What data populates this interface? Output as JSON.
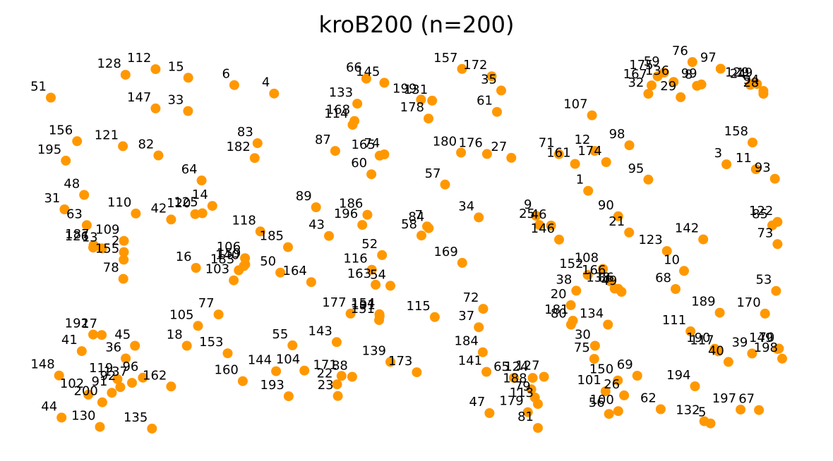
{
  "title": "kroB200  (n=200)",
  "chart_data": {
    "type": "scatter",
    "title": "kroB200  (n=200)",
    "xlabel": "",
    "ylabel": "",
    "axes_visible": false,
    "grid": false,
    "marker_color": "#FF9800",
    "xlim": [
      0,
      4000
    ],
    "ylim": [
      0,
      2000
    ],
    "points": [
      {
        "id": "1",
        "x": 2857,
        "y": 1202
      },
      {
        "id": "2",
        "x": 557,
        "y": 918
      },
      {
        "id": "3",
        "x": 3542,
        "y": 1325
      },
      {
        "id": "4",
        "x": 1301,
        "y": 1653
      },
      {
        "id": "5",
        "x": 3463,
        "y": 124
      },
      {
        "id": "6",
        "x": 1104,
        "y": 1692
      },
      {
        "id": "7",
        "x": 2059,
        "y": 1037
      },
      {
        "id": "8",
        "x": 3396,
        "y": 1689
      },
      {
        "id": "9",
        "x": 2599,
        "y": 1086
      },
      {
        "id": "10",
        "x": 3332,
        "y": 831
      },
      {
        "id": "11",
        "x": 3688,
        "y": 1302
      },
      {
        "id": "12",
        "x": 2889,
        "y": 1387
      },
      {
        "id": "13",
        "x": 449,
        "y": 935
      },
      {
        "id": "14",
        "x": 995,
        "y": 1132
      },
      {
        "id": "15",
        "x": 876,
        "y": 1726
      },
      {
        "id": "16",
        "x": 914,
        "y": 845
      },
      {
        "id": "17",
        "x": 447,
        "y": 534
      },
      {
        "id": "18",
        "x": 869,
        "y": 484
      },
      {
        "id": "19",
        "x": 3693,
        "y": 1697
      },
      {
        "id": "20",
        "x": 2771,
        "y": 672
      },
      {
        "id": "21",
        "x": 3060,
        "y": 1009
      },
      {
        "id": "22",
        "x": 1613,
        "y": 305
      },
      {
        "id": "23",
        "x": 1617,
        "y": 251
      },
      {
        "id": "24",
        "x": 3660,
        "y": 1693
      },
      {
        "id": "25",
        "x": 2615,
        "y": 1044
      },
      {
        "id": "26",
        "x": 3035,
        "y": 254
      },
      {
        "id": "27",
        "x": 2476,
        "y": 1355
      },
      {
        "id": "28",
        "x": 3725,
        "y": 1652
      },
      {
        "id": "29",
        "x": 3315,
        "y": 1636
      },
      {
        "id": "30",
        "x": 2891,
        "y": 484
      },
      {
        "id": "31",
        "x": 263,
        "y": 1116
      },
      {
        "id": "32",
        "x": 3155,
        "y": 1652
      },
      {
        "id": "33",
        "x": 875,
        "y": 1572
      },
      {
        "id": "34",
        "x": 2315,
        "y": 1079
      },
      {
        "id": "35",
        "x": 2426,
        "y": 1667
      },
      {
        "id": "36",
        "x": 566,
        "y": 425
      },
      {
        "id": "37",
        "x": 2315,
        "y": 570
      },
      {
        "id": "38",
        "x": 2798,
        "y": 739
      },
      {
        "id": "39",
        "x": 3669,
        "y": 448
      },
      {
        "id": "40",
        "x": 3552,
        "y": 409
      },
      {
        "id": "41",
        "x": 348,
        "y": 459
      },
      {
        "id": "42",
        "x": 791,
        "y": 1069
      },
      {
        "id": "43",
        "x": 1573,
        "y": 993
      },
      {
        "id": "44",
        "x": 248,
        "y": 151
      },
      {
        "id": "45",
        "x": 612,
        "y": 484
      },
      {
        "id": "46",
        "x": 2673,
        "y": 1041
      },
      {
        "id": "47",
        "x": 2368,
        "y": 172
      },
      {
        "id": "48",
        "x": 360,
        "y": 1183
      },
      {
        "id": "49",
        "x": 3022,
        "y": 734
      },
      {
        "id": "50",
        "x": 1332,
        "y": 823
      },
      {
        "id": "51",
        "x": 195,
        "y": 1634
      },
      {
        "id": "52",
        "x": 1836,
        "y": 904
      },
      {
        "id": "53",
        "x": 3788,
        "y": 738
      },
      {
        "id": "54",
        "x": 1877,
        "y": 762
      },
      {
        "id": "55",
        "x": 1392,
        "y": 486
      },
      {
        "id": "56",
        "x": 2960,
        "y": 168
      },
      {
        "id": "57",
        "x": 2148,
        "y": 1231
      },
      {
        "id": "58",
        "x": 2031,
        "y": 995
      },
      {
        "id": "59",
        "x": 3233,
        "y": 1750
      },
      {
        "id": "60",
        "x": 1783,
        "y": 1279
      },
      {
        "id": "61",
        "x": 2405,
        "y": 1568
      },
      {
        "id": "62",
        "x": 3216,
        "y": 190
      },
      {
        "id": "63",
        "x": 373,
        "y": 1043
      },
      {
        "id": "64",
        "x": 942,
        "y": 1250
      },
      {
        "id": "65",
        "x": 2489,
        "y": 335
      },
      {
        "id": "66",
        "x": 1758,
        "y": 1722
      },
      {
        "id": "67",
        "x": 3703,
        "y": 186
      },
      {
        "id": "68",
        "x": 3290,
        "y": 747
      },
      {
        "id": "69",
        "x": 3100,
        "y": 345
      },
      {
        "id": "70",
        "x": 3802,
        "y": 471
      },
      {
        "id": "71",
        "x": 2712,
        "y": 1372
      },
      {
        "id": "72",
        "x": 2337,
        "y": 655
      },
      {
        "id": "73",
        "x": 3795,
        "y": 955
      },
      {
        "id": "74",
        "x": 1847,
        "y": 1371
      },
      {
        "id": "75",
        "x": 2887,
        "y": 423
      },
      {
        "id": "76",
        "x": 3373,
        "y": 1799
      },
      {
        "id": "77",
        "x": 1026,
        "y": 629
      },
      {
        "id": "78",
        "x": 554,
        "y": 794
      },
      {
        "id": "79",
        "x": 2593,
        "y": 244
      },
      {
        "id": "80",
        "x": 2772,
        "y": 582
      },
      {
        "id": "81",
        "x": 2608,
        "y": 103
      },
      {
        "id": "82",
        "x": 728,
        "y": 1366
      },
      {
        "id": "83",
        "x": 1219,
        "y": 1423
      },
      {
        "id": "84",
        "x": 2067,
        "y": 1029
      },
      {
        "id": "85",
        "x": 3769,
        "y": 1042
      },
      {
        "id": "86",
        "x": 3006,
        "y": 748
      },
      {
        "id": "87",
        "x": 1604,
        "y": 1387
      },
      {
        "id": "88",
        "x": 1688,
        "y": 340
      },
      {
        "id": "89",
        "x": 1509,
        "y": 1126
      },
      {
        "id": "90",
        "x": 3006,
        "y": 1084
      },
      {
        "id": "91",
        "x": 497,
        "y": 266
      },
      {
        "id": "92",
        "x": 539,
        "y": 292
      },
      {
        "id": "93",
        "x": 3782,
        "y": 1258
      },
      {
        "id": "94",
        "x": 3725,
        "y": 1665
      },
      {
        "id": "95",
        "x": 3155,
        "y": 1254
      },
      {
        "id": "96",
        "x": 651,
        "y": 336
      },
      {
        "id": "97",
        "x": 3513,
        "y": 1768
      },
      {
        "id": "98",
        "x": 3061,
        "y": 1413
      },
      {
        "id": "99",
        "x": 3418,
        "y": 1695
      },
      {
        "id": "100",
        "x": 3006,
        "y": 181
      },
      {
        "id": "101",
        "x": 2943,
        "y": 273
      },
      {
        "id": "102",
        "x": 381,
        "y": 257
      },
      {
        "id": "103",
        "x": 1101,
        "y": 787
      },
      {
        "id": "104",
        "x": 1451,
        "y": 369
      },
      {
        "id": "105",
        "x": 924,
        "y": 576
      },
      {
        "id": "106",
        "x": 1157,
        "y": 890
      },
      {
        "id": "107",
        "x": 2876,
        "y": 1552
      },
      {
        "id": "108",
        "x": 2930,
        "y": 840
      },
      {
        "id": "109",
        "x": 557,
        "y": 970
      },
      {
        "id": "110",
        "x": 616,
        "y": 1097
      },
      {
        "id": "111",
        "x": 3364,
        "y": 551
      },
      {
        "id": "112",
        "x": 714,
        "y": 1766
      },
      {
        "id": "113",
        "x": 2608,
        "y": 214
      },
      {
        "id": "114",
        "x": 1690,
        "y": 1508
      },
      {
        "id": "115",
        "x": 2097,
        "y": 617
      },
      {
        "id": "116",
        "x": 1785,
        "y": 836
      },
      {
        "id": "117",
        "x": 3502,
        "y": 458
      },
      {
        "id": "118",
        "x": 1233,
        "y": 1014
      },
      {
        "id": "119",
        "x": 525,
        "y": 329
      },
      {
        "id": "120",
        "x": 910,
        "y": 1094
      },
      {
        "id": "121",
        "x": 552,
        "y": 1409
      },
      {
        "id": "122",
        "x": 3795,
        "y": 1058
      },
      {
        "id": "123",
        "x": 3247,
        "y": 923
      },
      {
        "id": "124",
        "x": 2582,
        "y": 335
      },
      {
        "id": "125",
        "x": 946,
        "y": 1098
      },
      {
        "id": "126",
        "x": 405,
        "y": 939
      },
      {
        "id": "127",
        "x": 2638,
        "y": 340
      },
      {
        "id": "128",
        "x": 565,
        "y": 1740
      },
      {
        "id": "129",
        "x": 3676,
        "y": 1700
      },
      {
        "id": "130",
        "x": 438,
        "y": 108
      },
      {
        "id": "131",
        "x": 2084,
        "y": 1620
      },
      {
        "id": "132",
        "x": 3432,
        "y": 134
      },
      {
        "id": "133",
        "x": 1713,
        "y": 1606
      },
      {
        "id": "134",
        "x": 2955,
        "y": 582
      },
      {
        "id": "135",
        "x": 696,
        "y": 100
      },
      {
        "id": "136",
        "x": 3280,
        "y": 1707
      },
      {
        "id": "137",
        "x": 597,
        "y": 312
      },
      {
        "id": "138",
        "x": 2988,
        "y": 749
      },
      {
        "id": "139",
        "x": 1877,
        "y": 409
      },
      {
        "id": "140",
        "x": 1151,
        "y": 853
      },
      {
        "id": "141",
        "x": 2353,
        "y": 363
      },
      {
        "id": "142",
        "x": 3427,
        "y": 977
      },
      {
        "id": "143",
        "x": 1611,
        "y": 501
      },
      {
        "id": "144",
        "x": 1311,
        "y": 366
      },
      {
        "id": "145",
        "x": 1847,
        "y": 1703
      },
      {
        "id": "146",
        "x": 2713,
        "y": 976
      },
      {
        "id": "147",
        "x": 714,
        "y": 1584
      },
      {
        "id": "148",
        "x": 236,
        "y": 346
      },
      {
        "id": "149",
        "x": 3795,
        "y": 469
      },
      {
        "id": "150",
        "x": 3004,
        "y": 323
      },
      {
        "id": "151",
        "x": 1821,
        "y": 603
      },
      {
        "id": "152",
        "x": 2855,
        "y": 812
      },
      {
        "id": "153",
        "x": 1071,
        "y": 449
      },
      {
        "id": "154",
        "x": 1823,
        "y": 630
      },
      {
        "id": "155",
        "x": 556,
        "y": 883
      },
      {
        "id": "156",
        "x": 325,
        "y": 1432
      },
      {
        "id": "157",
        "x": 2232,
        "y": 1767
      },
      {
        "id": "158",
        "x": 3671,
        "y": 1426
      },
      {
        "id": "159",
        "x": 1158,
        "y": 861
      },
      {
        "id": "160",
        "x": 1146,
        "y": 320
      },
      {
        "id": "161",
        "x": 2792,
        "y": 1327
      },
      {
        "id": "162",
        "x": 791,
        "y": 295
      },
      {
        "id": "163",
        "x": 1804,
        "y": 767
      },
      {
        "id": "164",
        "x": 1485,
        "y": 779
      },
      {
        "id": "165",
        "x": 1824,
        "y": 1365
      },
      {
        "id": "166",
        "x": 2966,
        "y": 783
      },
      {
        "id": "167",
        "x": 3171,
        "y": 1691
      },
      {
        "id": "168",
        "x": 1699,
        "y": 1526
      },
      {
        "id": "169",
        "x": 2233,
        "y": 868
      },
      {
        "id": "170",
        "x": 3733,
        "y": 633
      },
      {
        "id": "171",
        "x": 1635,
        "y": 344
      },
      {
        "id": "172",
        "x": 2379,
        "y": 1733
      },
      {
        "id": "173",
        "x": 2008,
        "y": 361
      },
      {
        "id": "174",
        "x": 2946,
        "y": 1335
      },
      {
        "id": "175",
        "x": 3201,
        "y": 1733
      },
      {
        "id": "176",
        "x": 2356,
        "y": 1373
      },
      {
        "id": "177",
        "x": 1680,
        "y": 633
      },
      {
        "id": "178",
        "x": 2066,
        "y": 1537
      },
      {
        "id": "179",
        "x": 2558,
        "y": 176
      },
      {
        "id": "180",
        "x": 2227,
        "y": 1379
      },
      {
        "id": "181",
        "x": 2781,
        "y": 600
      },
      {
        "id": "182",
        "x": 1205,
        "y": 1354
      },
      {
        "id": "183",
        "x": 1126,
        "y": 834
      },
      {
        "id": "184",
        "x": 2335,
        "y": 454
      },
      {
        "id": "185",
        "x": 1370,
        "y": 941
      },
      {
        "id": "186",
        "x": 1763,
        "y": 1091
      },
      {
        "id": "187",
        "x": 407,
        "y": 950
      },
      {
        "id": "188",
        "x": 2575,
        "y": 282
      },
      {
        "id": "189",
        "x": 3509,
        "y": 637
      },
      {
        "id": "190",
        "x": 3484,
        "y": 470
      },
      {
        "id": "191",
        "x": 1824,
        "y": 621
      },
      {
        "id": "192",
        "x": 405,
        "y": 536
      },
      {
        "id": "193",
        "x": 1373,
        "y": 250
      },
      {
        "id": "194",
        "x": 3386,
        "y": 296
      },
      {
        "id": "195",
        "x": 269,
        "y": 1342
      },
      {
        "id": "196",
        "x": 1738,
        "y": 1044
      },
      {
        "id": "197",
        "x": 3612,
        "y": 188
      },
      {
        "id": "198",
        "x": 3818,
        "y": 424
      },
      {
        "id": "199",
        "x": 2029,
        "y": 1625
      },
      {
        "id": "200",
        "x": 450,
        "y": 222
      }
    ]
  }
}
